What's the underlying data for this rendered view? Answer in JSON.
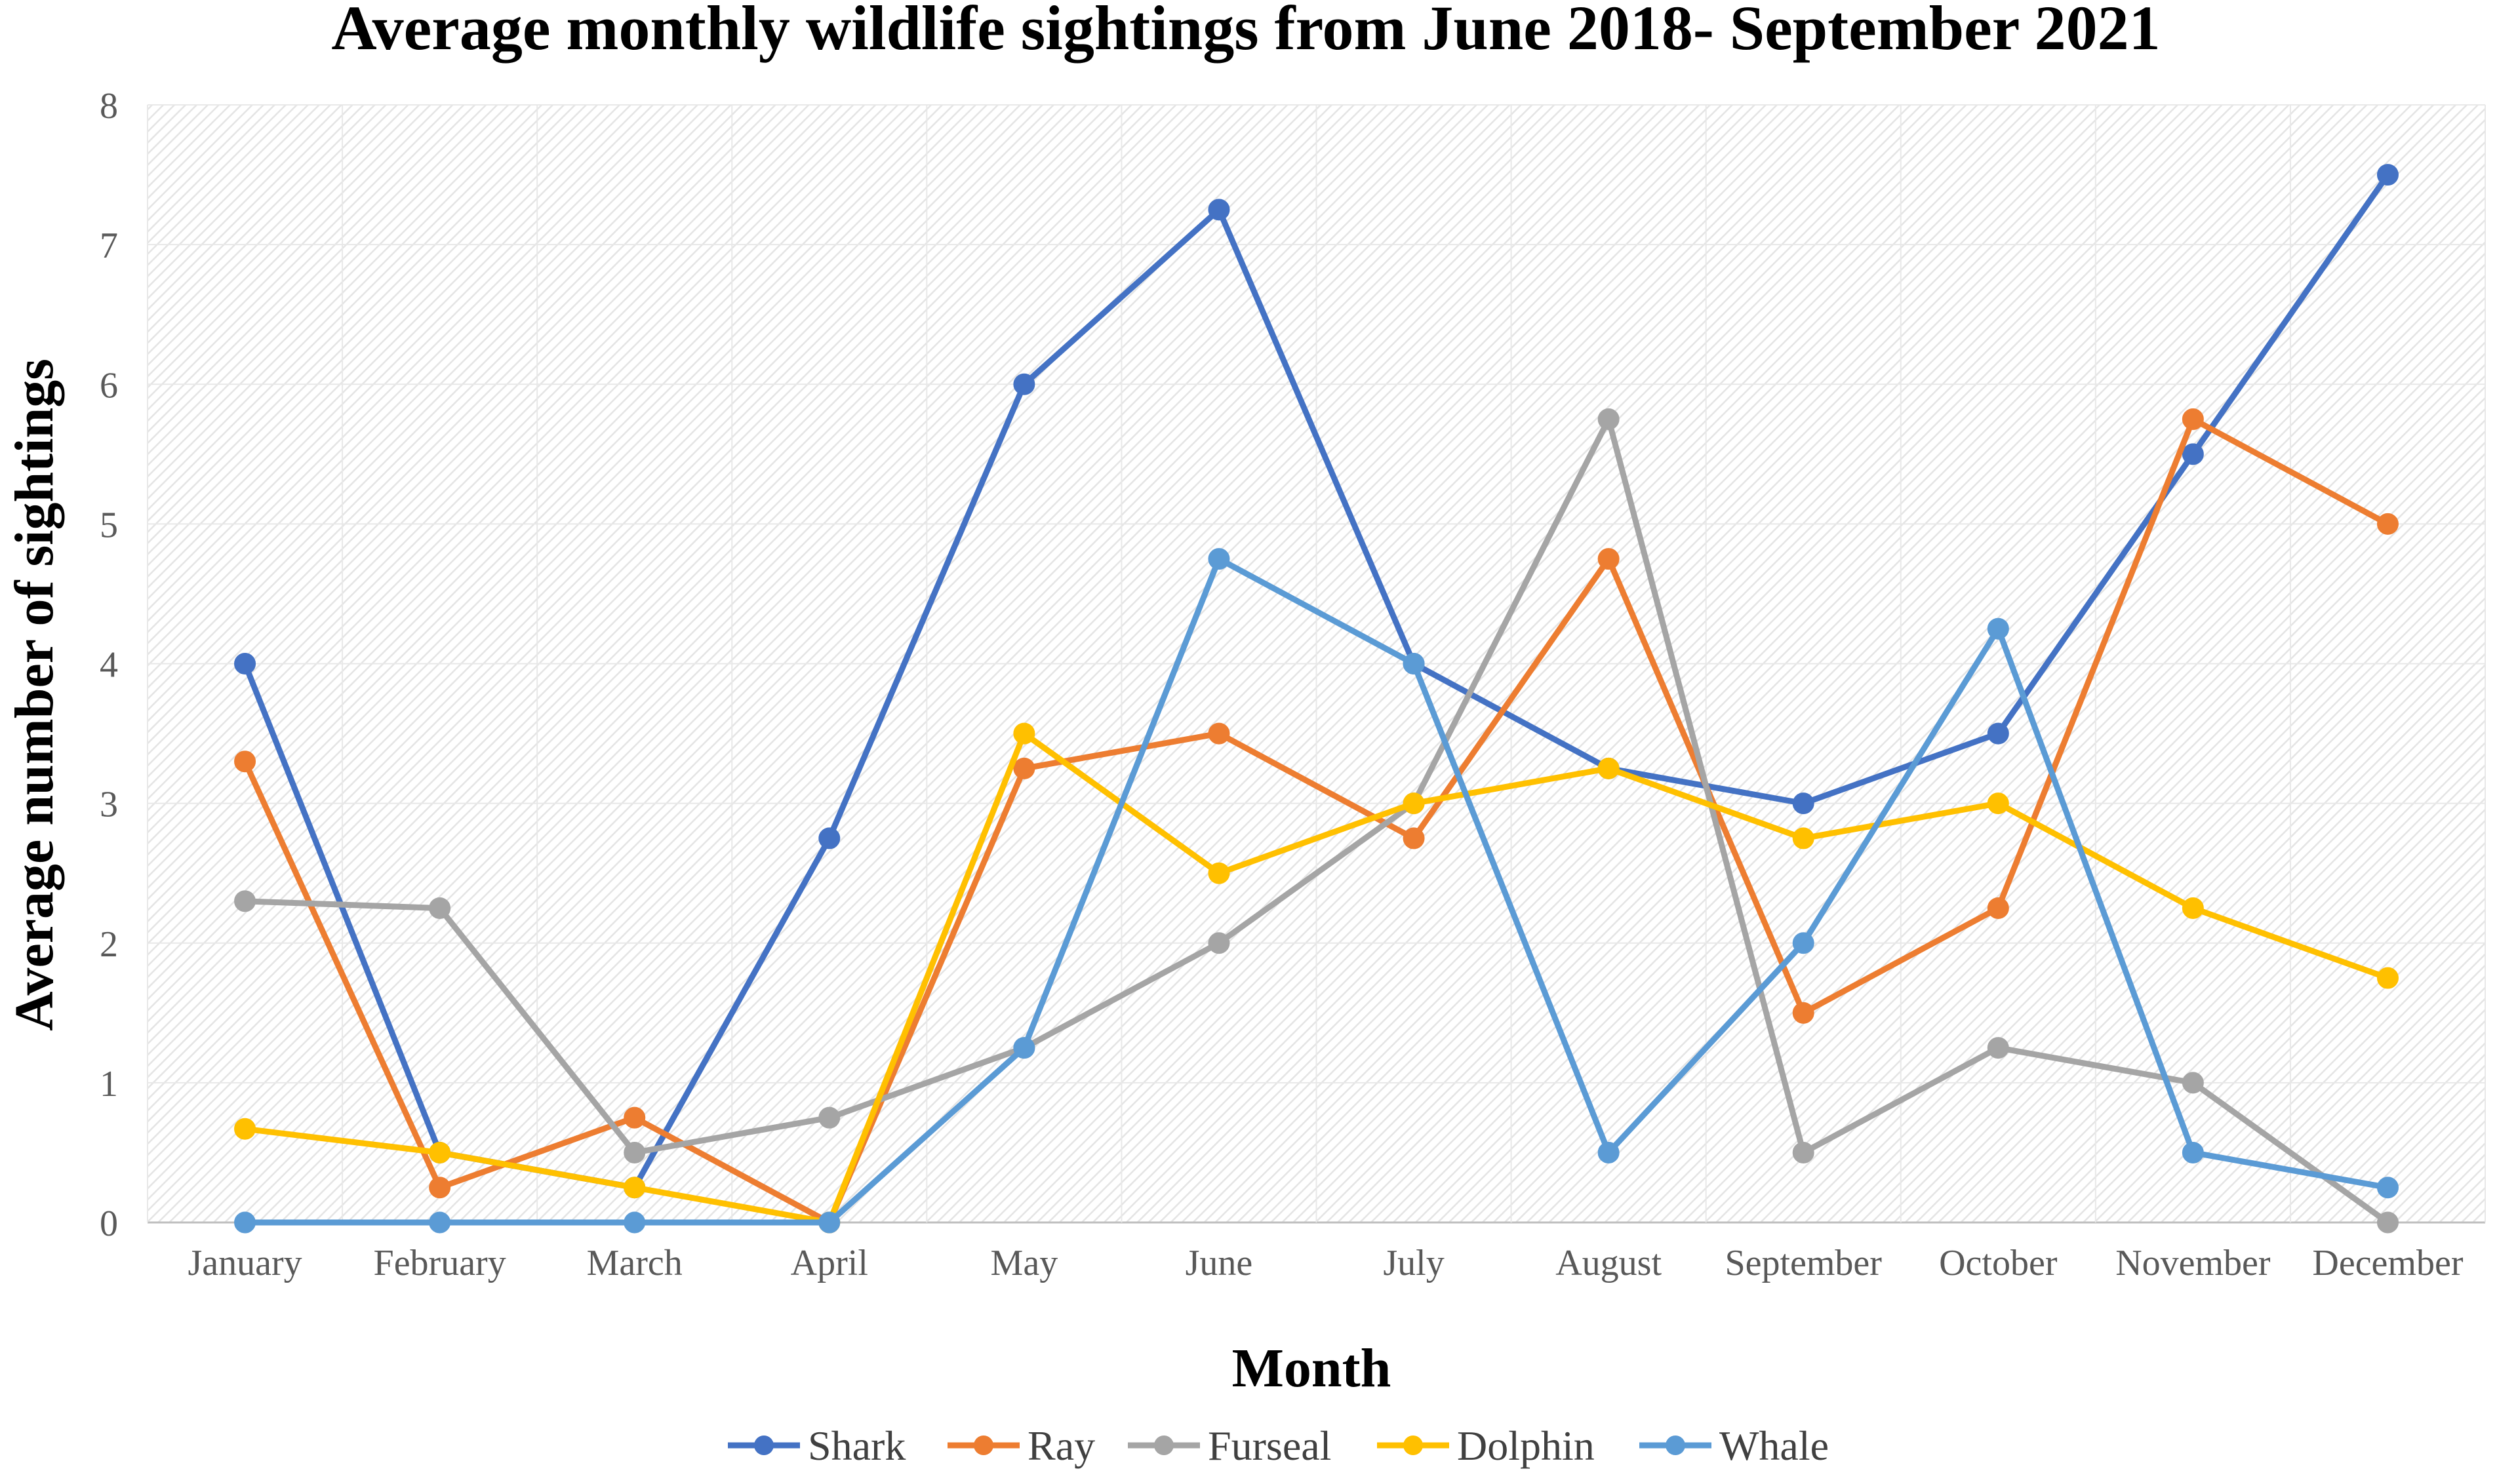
{
  "chart_data": {
    "type": "line",
    "title": "Average monthly wildlife sightings from June 2018- September 2021",
    "xlabel": "Month",
    "ylabel": "Average number of sightings",
    "ylim": [
      0,
      8
    ],
    "yticks": [
      "0",
      "1",
      "2",
      "3",
      "4",
      "5",
      "6",
      "7",
      "8"
    ],
    "grid": true,
    "legend_position": "bottom",
    "categories": [
      "January",
      "February",
      "March",
      "April",
      "May",
      "June",
      "July",
      "August",
      "September",
      "October",
      "November",
      "December"
    ],
    "series": [
      {
        "name": "Shark",
        "color": "#4472C4",
        "values": [
          4,
          0.5,
          0.25,
          2.75,
          6,
          7.25,
          4,
          3.25,
          3,
          3.5,
          5.5,
          7.5
        ]
      },
      {
        "name": "Ray",
        "color": "#ED7D31",
        "values": [
          3.3,
          0.25,
          0.75,
          0,
          3.25,
          3.5,
          2.75,
          4.75,
          1.5,
          2.25,
          5.75,
          5
        ]
      },
      {
        "name": "Furseal",
        "color": "#A5A5A5",
        "values": [
          2.3,
          2.25,
          0.5,
          0.75,
          1.25,
          2,
          3,
          5.75,
          0.5,
          1.25,
          1,
          0
        ]
      },
      {
        "name": "Dolphin",
        "color": "#FFC000",
        "values": [
          0.67,
          0.5,
          0.25,
          0,
          3.5,
          2.5,
          3,
          3.25,
          2.75,
          3,
          2.25,
          1.75
        ]
      },
      {
        "name": "Whale",
        "color": "#5B9BD5",
        "values": [
          0,
          0,
          0,
          0,
          1.25,
          4.75,
          4,
          0.5,
          2,
          4.25,
          0.5,
          0.25
        ]
      }
    ]
  }
}
